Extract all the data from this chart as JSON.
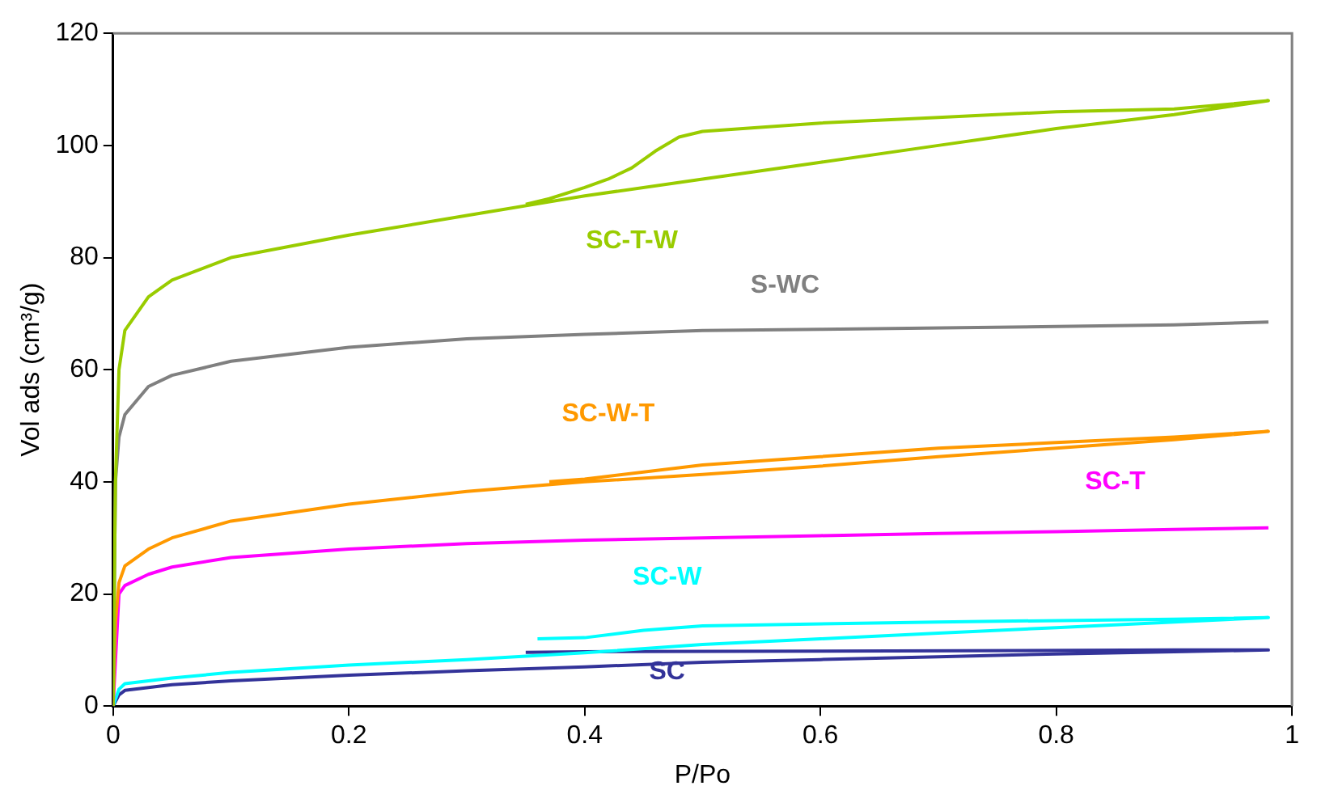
{
  "chart_data": {
    "type": "line",
    "xlabel": "P/Po",
    "ylabel": "Vol ads (cm³/g)",
    "xlim": [
      0,
      1
    ],
    "xticks": [
      0,
      0.2,
      0.4,
      0.6,
      0.8,
      1
    ],
    "ylim": [
      0,
      120
    ],
    "yticks": [
      0,
      20,
      40,
      60,
      80,
      100,
      120
    ],
    "grid": false,
    "legend": false,
    "marker": "none",
    "line_style": "solid",
    "series": [
      {
        "name": "SC-T-W",
        "color": "#99cc00",
        "x": [
          0,
          0.002,
          0.005,
          0.01,
          0.03,
          0.05,
          0.1,
          0.2,
          0.3,
          0.4,
          0.5,
          0.6,
          0.7,
          0.8,
          0.9,
          0.98,
          0.9,
          0.8,
          0.7,
          0.6,
          0.5,
          0.48,
          0.46,
          0.44,
          0.42,
          0.4,
          0.37,
          0.35
        ],
        "values": [
          0,
          40,
          60,
          67,
          73,
          76,
          80,
          84,
          87.5,
          91,
          94,
          97,
          100,
          103,
          105.5,
          108,
          106.5,
          106,
          105,
          104,
          102.5,
          101.5,
          99,
          96,
          94,
          92.5,
          90.5,
          89.5
        ]
      },
      {
        "name": "S-WC",
        "color": "#808080",
        "x": [
          0,
          0.002,
          0.005,
          0.01,
          0.03,
          0.05,
          0.1,
          0.2,
          0.3,
          0.4,
          0.5,
          0.6,
          0.8,
          0.9,
          0.98
        ],
        "values": [
          0,
          40,
          48,
          52,
          57,
          59,
          61.5,
          64,
          65.5,
          66.3,
          67,
          67.2,
          67.7,
          68,
          68.5
        ]
      },
      {
        "name": "SC-W-T",
        "color": "#ff9900",
        "x": [
          0,
          0.002,
          0.005,
          0.01,
          0.03,
          0.05,
          0.1,
          0.2,
          0.3,
          0.4,
          0.5,
          0.6,
          0.7,
          0.8,
          0.9,
          0.98,
          0.9,
          0.8,
          0.7,
          0.6,
          0.5,
          0.4,
          0.37
        ],
        "values": [
          0,
          15,
          22,
          25,
          28,
          30,
          33,
          36,
          38.3,
          40,
          41.3,
          42.8,
          44.5,
          46,
          47.5,
          49,
          48,
          47,
          46,
          44.5,
          43,
          40.5,
          40
        ]
      },
      {
        "name": "SC-T",
        "color": "#ff00ff",
        "x": [
          0,
          0.005,
          0.01,
          0.03,
          0.05,
          0.1,
          0.2,
          0.3,
          0.4,
          0.5,
          0.6,
          0.7,
          0.8,
          0.9,
          0.98
        ],
        "values": [
          0,
          20,
          21.5,
          23.5,
          24.8,
          26.5,
          28,
          29,
          29.6,
          30,
          30.4,
          30.8,
          31.1,
          31.5,
          31.8
        ]
      },
      {
        "name": "SC-W",
        "color": "#00ffff",
        "x": [
          0,
          0.005,
          0.01,
          0.05,
          0.1,
          0.2,
          0.3,
          0.4,
          0.5,
          0.6,
          0.7,
          0.8,
          0.9,
          0.98,
          0.9,
          0.7,
          0.5,
          0.45,
          0.4,
          0.36
        ],
        "values": [
          0,
          3,
          4,
          5,
          6,
          7.3,
          8.3,
          9.5,
          11,
          12,
          13,
          14,
          15,
          15.8,
          15.5,
          15,
          14.3,
          13.5,
          12.2,
          12
        ]
      },
      {
        "name": "SC",
        "color": "#333399",
        "x": [
          0,
          0.005,
          0.01,
          0.05,
          0.1,
          0.2,
          0.3,
          0.4,
          0.5,
          0.6,
          0.7,
          0.8,
          0.9,
          0.98,
          0.9,
          0.6,
          0.4,
          0.35
        ],
        "values": [
          0,
          2,
          2.8,
          3.8,
          4.5,
          5.5,
          6.3,
          7,
          7.8,
          8.3,
          8.8,
          9.3,
          9.7,
          10,
          10,
          9.8,
          9.7,
          9.6
        ]
      }
    ]
  }
}
